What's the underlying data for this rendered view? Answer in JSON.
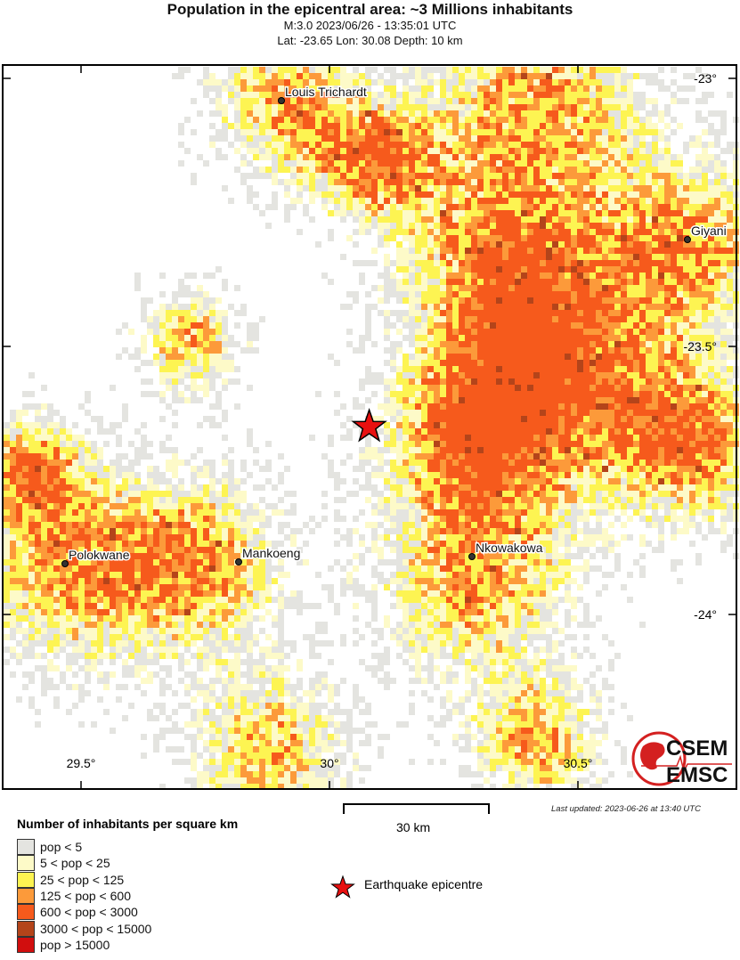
{
  "header": {
    "title": "Population in the epicentral area: ~3 Millions inhabitants",
    "event_line": "M:3.0 2023/06/26 - 13:35:01 UTC",
    "location_line": "Lat: -23.65 Lon: 30.08 Depth: 10 km"
  },
  "event": {
    "magnitude": 3.0,
    "lat": -23.65,
    "lon": 30.08,
    "depth_km": 10
  },
  "map": {
    "lon_ticks": [
      "29.5°",
      "30°",
      "30.5°"
    ],
    "lat_ticks": [
      "-23°",
      "-23.5°",
      "-24°"
    ],
    "cities": [
      "Louis Trichardt",
      "Giyani",
      "Polokwane",
      "Mankoeng",
      "Nkowakowa"
    ],
    "scale_label": "30 km",
    "logo_text": [
      "CSEM",
      "EMSC"
    ]
  },
  "legend": {
    "title": "Number of inhabitants per square km",
    "classes": [
      {
        "label": "pop < 5",
        "color": "#e4e4e0"
      },
      {
        "label": "5 < pop < 25",
        "color": "#fdfac8"
      },
      {
        "label": "25 < pop < 125",
        "color": "#fdf452"
      },
      {
        "label": "125 < pop < 600",
        "color": "#fc9a3a"
      },
      {
        "label": "600 < pop < 3000",
        "color": "#f65a1c"
      },
      {
        "label": "3000 < pop < 15000",
        "color": "#b4441a"
      },
      {
        "label": "pop > 15000",
        "color": "#d10e0e"
      }
    ],
    "epicentre_label": "Earthquake epicentre",
    "epicentre_color": "#e81010"
  },
  "footer": {
    "last_updated": "Last updated: 2023-06-26 at 13:40 UTC"
  }
}
